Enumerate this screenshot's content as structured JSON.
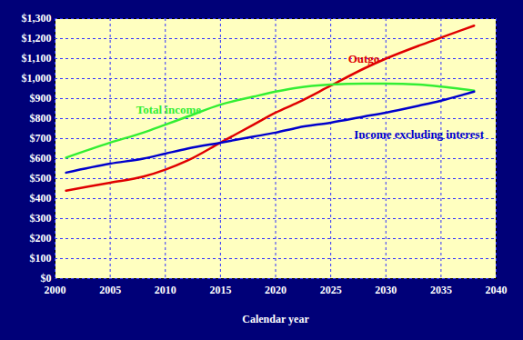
{
  "chart_data": {
    "type": "line",
    "x_label": "Calendar year",
    "x": [
      2001,
      2005,
      2008,
      2010,
      2012,
      2015,
      2018,
      2020,
      2022,
      2025,
      2028,
      2030,
      2033,
      2035,
      2038
    ],
    "series": [
      {
        "name": "Outgo",
        "color": "#e00000",
        "label_at": [
          2028,
          1100
        ],
        "values": [
          440,
          480,
          510,
          545,
          590,
          680,
          770,
          830,
          880,
          965,
          1050,
          1100,
          1165,
          1205,
          1265
        ]
      },
      {
        "name": "Total income",
        "color": "#33ee33",
        "label_at": [
          2010.3,
          845
        ],
        "values": [
          605,
          680,
          730,
          770,
          810,
          870,
          910,
          935,
          955,
          970,
          975,
          975,
          970,
          960,
          940
        ]
      },
      {
        "name": "Income excluding interest",
        "color": "#0000cc",
        "label_at": [
          2033,
          720
        ],
        "values": [
          530,
          575,
          600,
          625,
          650,
          680,
          710,
          730,
          755,
          780,
          810,
          830,
          865,
          890,
          935
        ]
      }
    ],
    "xlim": [
      2000,
      2040
    ],
    "xticks": [
      2000,
      2005,
      2010,
      2015,
      2020,
      2025,
      2030,
      2035,
      2040
    ],
    "ylim": [
      0,
      1300
    ],
    "yticks": [
      {
        "value": 0,
        "label": "$0"
      },
      {
        "value": 100,
        "label": "$100"
      },
      {
        "value": 200,
        "label": "$200"
      },
      {
        "value": 300,
        "label": "$300"
      },
      {
        "value": 400,
        "label": "$400"
      },
      {
        "value": 500,
        "label": "$500"
      },
      {
        "value": 600,
        "label": "$600"
      },
      {
        "value": 700,
        "label": "$700"
      },
      {
        "value": 800,
        "label": "$800"
      },
      {
        "value": 900,
        "label": "$900"
      },
      {
        "value": 1000,
        "label": "$1,000"
      },
      {
        "value": 1100,
        "label": "$1,100"
      },
      {
        "value": 1200,
        "label": "$1,200"
      },
      {
        "value": 1300,
        "label": "$1,300"
      }
    ],
    "grid": true
  }
}
